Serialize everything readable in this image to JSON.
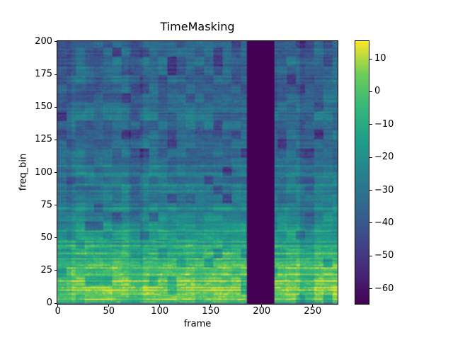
{
  "figure": {
    "background_color": "#ffffff",
    "text_color": "#000000"
  },
  "chart_data": {
    "type": "heatmap",
    "title": "TimeMasking",
    "xlabel": "frame",
    "ylabel": "freq_bin",
    "xlim": [
      -0.5,
      274.5
    ],
    "ylim": [
      -0.5,
      200.5
    ],
    "n_frames": 275,
    "n_freq_bins": 201,
    "x_ticks": [
      0,
      50,
      100,
      150,
      200,
      250
    ],
    "y_ticks": [
      0,
      25,
      50,
      75,
      100,
      125,
      150,
      175,
      200
    ],
    "grid": false,
    "legend": "none",
    "colormap": "viridis",
    "vmin": -64.6,
    "vmax": 15.4,
    "colorbar": {
      "position": "right",
      "ticks": [
        {
          "v": 10,
          "label": "10"
        },
        {
          "v": 0,
          "label": "0"
        },
        {
          "v": -10,
          "label": "−10"
        },
        {
          "v": -20,
          "label": "−20"
        },
        {
          "v": -30,
          "label": "−30"
        },
        {
          "v": -40,
          "label": "−40"
        },
        {
          "v": -50,
          "label": "−50"
        },
        {
          "v": -60,
          "label": "−60"
        }
      ]
    },
    "masked_region": {
      "axis": "time",
      "frame_start": 186,
      "frame_end": 212,
      "fill_value_db": -64.6
    },
    "content_summary": "Log-power spectrogram (dB) of an audio clip after torchaudio TimeMasking: energy is highest (yellow, ~0 to +15 dB) in low frequency bins 2-45 as horizontal harmonic streaks, mid teal (~-20 to -30 dB) with green dashed harmonics for bins 45-110, and darker blocky purple/teal texture (~-30 to -55 dB) for bins 110-200; a solid dark-purple vertical band at frames 186-212 is masked to the minimum value.",
    "viridis_stops": [
      [
        68,
        1,
        84
      ],
      [
        72,
        40,
        120
      ],
      [
        62,
        74,
        137
      ],
      [
        49,
        104,
        142
      ],
      [
        38,
        130,
        142
      ],
      [
        31,
        158,
        137
      ],
      [
        53,
        183,
        121
      ],
      [
        109,
        205,
        89
      ],
      [
        253,
        231,
        37
      ]
    ],
    "generation": {
      "seed": 20240613,
      "base_profile": [
        [
          0,
          -26
        ],
        [
          1,
          -12
        ],
        [
          3,
          -2
        ],
        [
          6,
          3
        ],
        [
          12,
          3
        ],
        [
          18,
          0
        ],
        [
          26,
          -5
        ],
        [
          36,
          -10
        ],
        [
          48,
          -17
        ],
        [
          60,
          -23
        ],
        [
          75,
          -27
        ],
        [
          90,
          -30
        ],
        [
          110,
          -33
        ],
        [
          140,
          -35
        ],
        [
          170,
          -36
        ],
        [
          200,
          -37
        ]
      ],
      "block_w": 9,
      "block_h": 7,
      "pixel_noise": 6,
      "streak_prob": 0.18,
      "column_segment": 14,
      "column_amp": 4
    }
  }
}
